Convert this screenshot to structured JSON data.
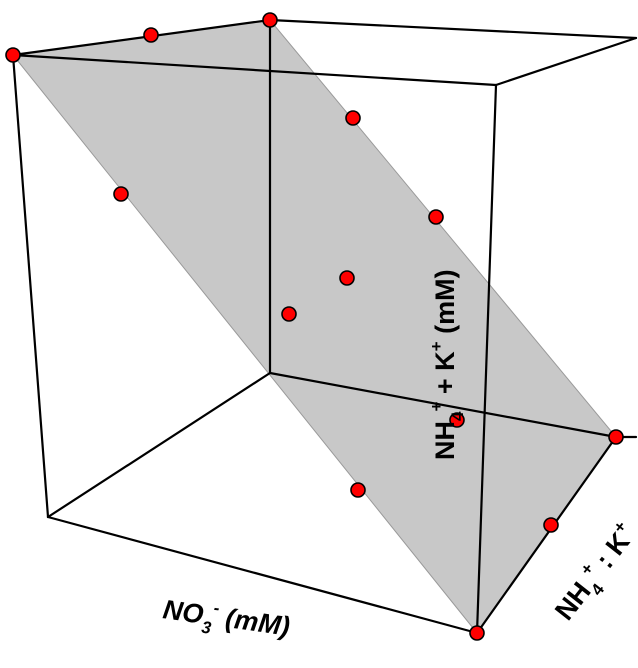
{
  "axes": {
    "x": {
      "base": "NO",
      "sub": "3",
      "sup": "-",
      "unit": " (mM)"
    },
    "y": {
      "p1": "NH",
      "p1_sub": "4",
      "p1_sup": "+",
      "p2": " : K",
      "p2_sup": "+"
    },
    "z": {
      "p1": "NH",
      "p1_sub": "4",
      "p1_sup": "+",
      "p2": " + K",
      "p2_sup": "+",
      "unit": " (mM)"
    }
  },
  "design_points_count": 13,
  "colors": {
    "point": "#ff0000",
    "plane": "#c8c8c8",
    "edge": "#000000"
  }
}
